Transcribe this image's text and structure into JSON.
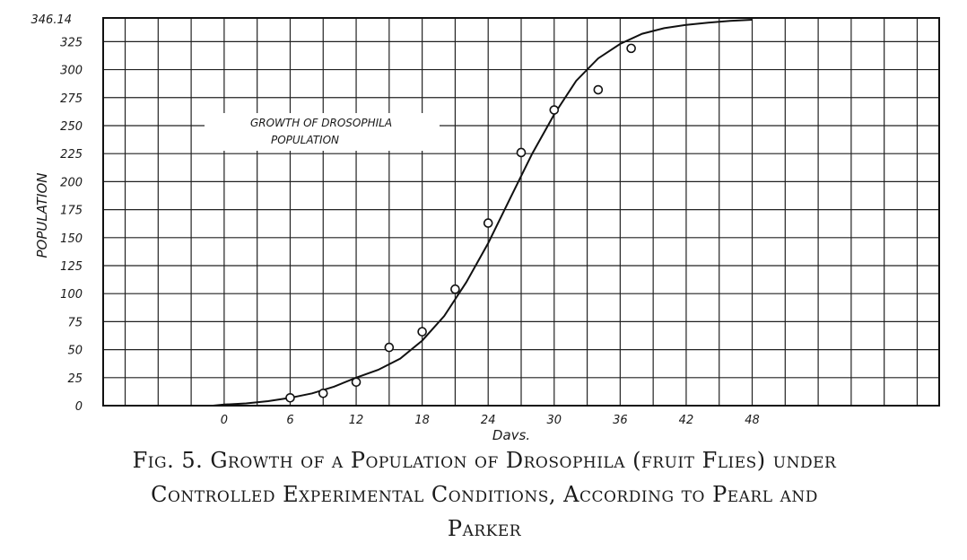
{
  "chart_data": {
    "type": "scatter",
    "ylabel": "POPULATION",
    "xlabel": "Days.",
    "annotation": [
      "GROWTH OF DROSOPHILA",
      "POPULATION"
    ],
    "xlim": [
      -11,
      65
    ],
    "ylim": [
      0,
      346.14
    ],
    "x_ticks": [
      0,
      6,
      12,
      18,
      24,
      30,
      36,
      42,
      48
    ],
    "y_ticks": [
      0,
      25,
      50,
      75,
      100,
      125,
      150,
      175,
      200,
      225,
      250,
      275,
      300,
      325
    ],
    "y_tick_labels": [
      "0",
      "25",
      "50",
      "75",
      "100",
      "125",
      "150",
      "175",
      "200",
      "225",
      "250",
      "275",
      "300",
      "325"
    ],
    "y_top_label": "346.14",
    "grid": true,
    "observed": {
      "x": [
        6,
        9,
        12,
        15,
        18,
        21,
        24,
        27,
        30,
        34,
        37
      ],
      "y": [
        7,
        11,
        21,
        52,
        66,
        104,
        163,
        226,
        264,
        282,
        319
      ]
    },
    "fitted_curve": {
      "type": "logistic",
      "x": [
        -1,
        0,
        2,
        4,
        6,
        8,
        10,
        12,
        14,
        16,
        18,
        20,
        22,
        24,
        26,
        28,
        30,
        32,
        34,
        36,
        38,
        40,
        42,
        44,
        46,
        48
      ],
      "y": [
        0,
        1,
        2,
        4,
        7,
        11,
        17,
        25,
        32,
        42,
        58,
        80,
        110,
        145,
        185,
        225,
        260,
        290,
        310,
        323,
        332,
        337,
        340,
        342,
        343.5,
        344.5
      ]
    }
  },
  "caption": {
    "line1": "Fig. 5. Growth of a Population of Drosophila (fruit Flies) under",
    "line2": "Controlled Experimental Conditions, According to Pearl and",
    "line3": "Parker"
  }
}
